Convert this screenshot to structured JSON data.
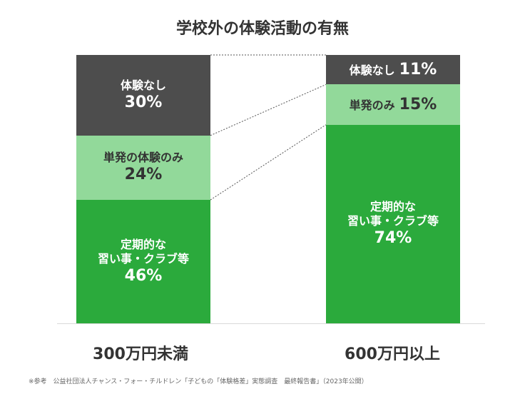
{
  "chart_data": {
    "type": "bar",
    "stacked": true,
    "title": "学校外の体験活動の有無",
    "categories": [
      "300万円未満",
      "600万円以上"
    ],
    "series": [
      {
        "name": "定期的な習い事・クラブ等",
        "values": [
          46,
          74
        ],
        "color": "#2baa3c",
        "text_color": "#ffffff",
        "label_lines": [
          "定期的な",
          "習い事・クラブ等"
        ]
      },
      {
        "name": "単発の体験のみ",
        "values": [
          24,
          15
        ],
        "color": "#92d99a",
        "text_color": "#333333",
        "label_lines": [
          "単発の体験のみ",
          "単発のみ"
        ]
      },
      {
        "name": "体験なし",
        "values": [
          30,
          11
        ],
        "color": "#4d4d4d",
        "text_color": "#ffffff",
        "label_lines": [
          "体験なし",
          "体験なし"
        ]
      }
    ],
    "value_labels": [
      [
        "46%",
        "24%",
        "30%"
      ],
      [
        "74%",
        "15%",
        "11%"
      ]
    ],
    "ylim": [
      0,
      100
    ],
    "grid": false,
    "legend": "none"
  },
  "footnote": "※参考　公益社団法人チャンス・フォー・チルドレン「子どもの「体験格差」実態調査　最終報告書」（2023年公開）"
}
